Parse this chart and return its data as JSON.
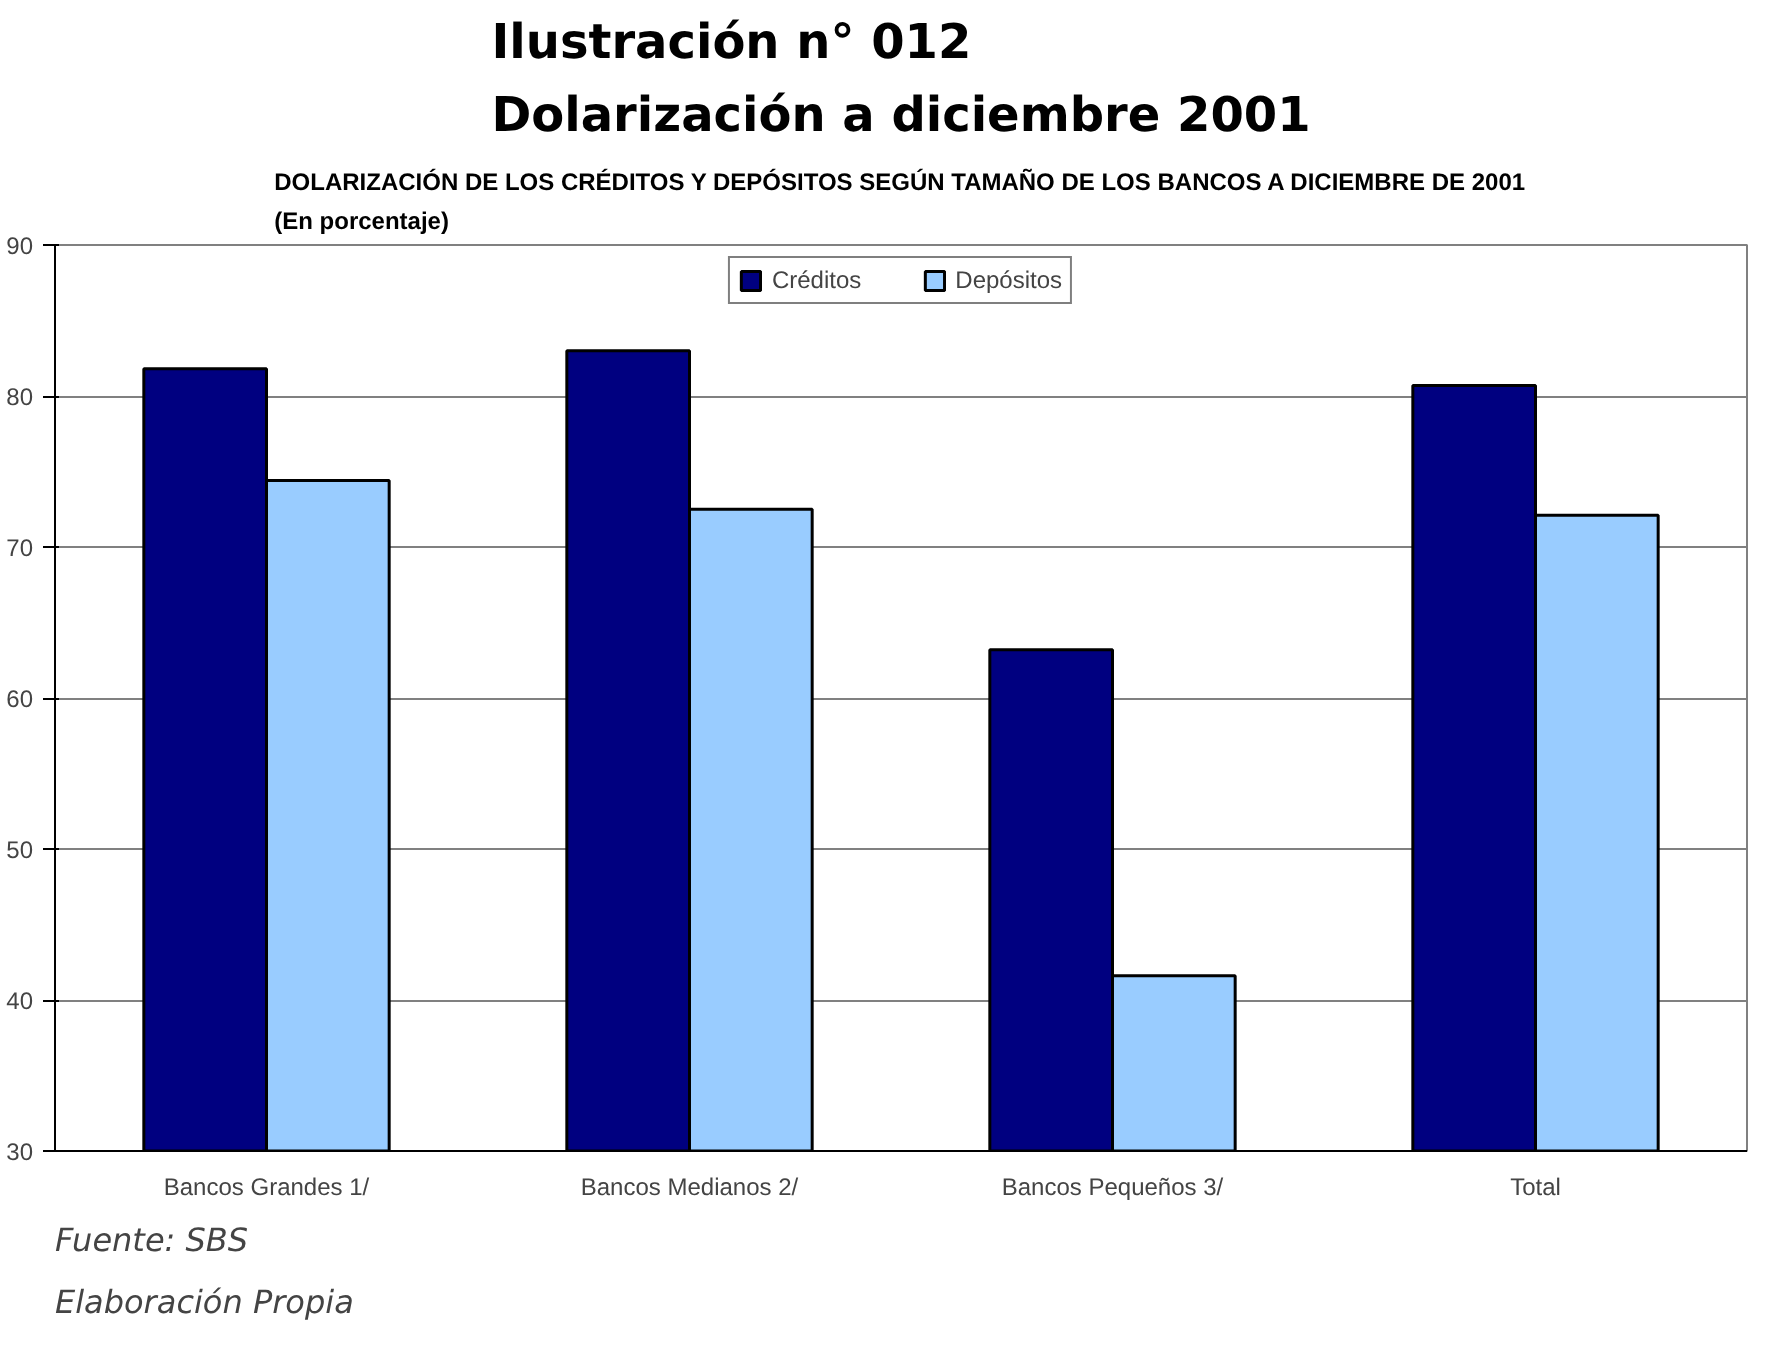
{
  "chart_data": {
    "type": "bar",
    "title": "Ilustración n° 012\nDolarización a diciembre 2001",
    "subtitle": "DOLARIZACIÓN DE LOS CRÉDITOS Y DEPÓSITOS SEGÚN TAMAÑO DE LOS BANCOS A DICIEMBRE DE 2001\n(En porcentaje)",
    "categories": [
      "Bancos Grandes 1/",
      "Bancos Medianos 2/",
      "Bancos Pequeños 3/",
      "Total"
    ],
    "series": [
      {
        "name": "Créditos",
        "color": "#000080",
        "values": [
          81.8,
          83.0,
          63.2,
          80.7
        ]
      },
      {
        "name": "Depósitos",
        "color": "#99ccff",
        "values": [
          74.4,
          72.5,
          41.6,
          72.1
        ]
      }
    ],
    "ylim": [
      30,
      90
    ],
    "yticks": [
      30,
      40,
      50,
      60,
      70,
      80,
      90
    ],
    "grid": "y",
    "legend": "top",
    "annotations": [
      "Fuente: SBS",
      "Elaboración Propia"
    ]
  }
}
